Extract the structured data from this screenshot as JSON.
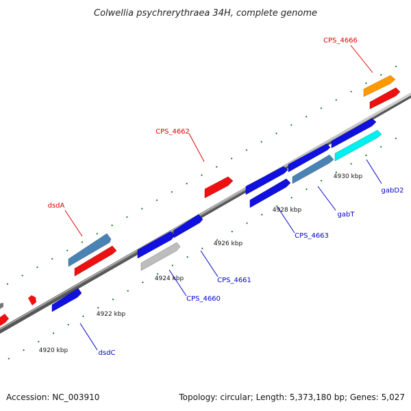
{
  "title": "Colwellia psychrerythraea 34H, complete genome",
  "footer": {
    "accession": "Accession: NC_003910",
    "summary": "Topology: circular; Length: 5,373,180 bp; Genes: 5,027"
  },
  "kbp_labels": [
    "4920 kbp",
    "4922 kbp",
    "4924 kbp",
    "4926 kbp",
    "4928 kbp",
    "4930 kbp"
  ],
  "gene_labels": [
    "CPS_4666",
    "CPS_4662",
    "dsdA",
    "gabD2",
    "gabT",
    "CPS_4663",
    "CPS_4661",
    "CPS_4660",
    "dsdC"
  ],
  "colors": {
    "forward_red": "#ee1111",
    "reverse_blue": "#1010e0",
    "steel_blue": "#4a82b4",
    "cyan": "#00f0f0",
    "orange": "#ff9900",
    "grey": "#bdbdbd",
    "backbone": "#888888",
    "tick_green": "#1a7a1a"
  }
}
